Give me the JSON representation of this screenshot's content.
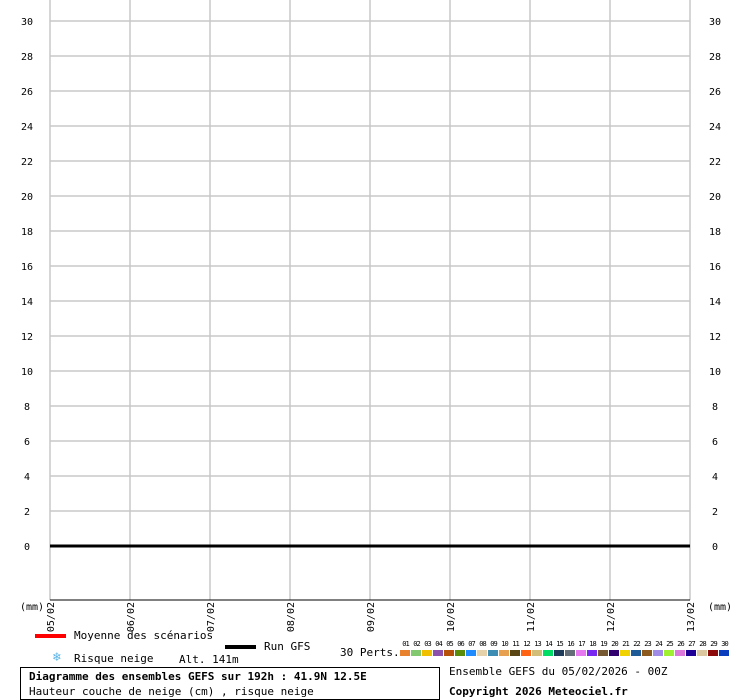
{
  "chart_data": {
    "type": "line",
    "ylim": [
      0,
      30
    ],
    "yticks": [
      0,
      2,
      4,
      6,
      8,
      10,
      12,
      14,
      16,
      18,
      20,
      22,
      24,
      26,
      28,
      30
    ],
    "x": [
      "05/02",
      "06/02",
      "07/02",
      "08/02",
      "09/02",
      "10/02",
      "11/02",
      "12/02",
      "13/02"
    ],
    "unit_left": "(mm)",
    "unit_right": "(mm)",
    "grid": true,
    "series": [
      {
        "name": "Run GFS",
        "color": "#000000",
        "values": [
          0,
          0,
          0,
          0,
          0,
          0,
          0,
          0,
          0
        ]
      }
    ]
  },
  "legend": {
    "mean_label": "Moyenne des scénarios",
    "mean_color": "#ff0000",
    "run_label": "Run GFS",
    "run_color": "#000000",
    "snow_label": "Risque neige",
    "snow_icon": "snowflake-icon",
    "alt": "Alt. 141m",
    "perts_label": "30 Perts.",
    "perts": [
      {
        "n": "01",
        "c": "#e8822e"
      },
      {
        "n": "02",
        "c": "#82c86e"
      },
      {
        "n": "03",
        "c": "#f0c000"
      },
      {
        "n": "04",
        "c": "#8c50aa"
      },
      {
        "n": "05",
        "c": "#b4500a"
      },
      {
        "n": "06",
        "c": "#5a8c0a"
      },
      {
        "n": "07",
        "c": "#1e8cff"
      },
      {
        "n": "08",
        "c": "#e6d2aa"
      },
      {
        "n": "09",
        "c": "#3c8cb4"
      },
      {
        "n": "10",
        "c": "#e6a050"
      },
      {
        "n": "11",
        "c": "#5a4614"
      },
      {
        "n": "12",
        "c": "#ff6414"
      },
      {
        "n": "13",
        "c": "#d2be78"
      },
      {
        "n": "14",
        "c": "#00dc64"
      },
      {
        "n": "15",
        "c": "#1e3c5a"
      },
      {
        "n": "16",
        "c": "#646e78"
      },
      {
        "n": "17",
        "c": "#e678f0"
      },
      {
        "n": "18",
        "c": "#7828f0"
      },
      {
        "n": "19",
        "c": "#785a32"
      },
      {
        "n": "20",
        "c": "#32006e"
      },
      {
        "n": "21",
        "c": "#f0d200"
      },
      {
        "n": "22",
        "c": "#1e5a96"
      },
      {
        "n": "23",
        "c": "#8c5a1e"
      },
      {
        "n": "24",
        "c": "#a08ce6"
      },
      {
        "n": "25",
        "c": "#a0f032"
      },
      {
        "n": "26",
        "c": "#dc78dc"
      },
      {
        "n": "27",
        "c": "#1e0096"
      },
      {
        "n": "28",
        "c": "#dcc8a0"
      },
      {
        "n": "29",
        "c": "#8c0a0a"
      },
      {
        "n": "30",
        "c": "#0a3cbe"
      }
    ]
  },
  "footer": {
    "title": "Diagramme des ensembles GEFS sur 192h : 41.9N 12.5E",
    "subtitle": "Hauteur couche de neige (cm) , risque neige",
    "run": "Ensemble GEFS du 05/02/2026 - 00Z",
    "copyright": "Copyright 2026 Meteociel.fr"
  }
}
